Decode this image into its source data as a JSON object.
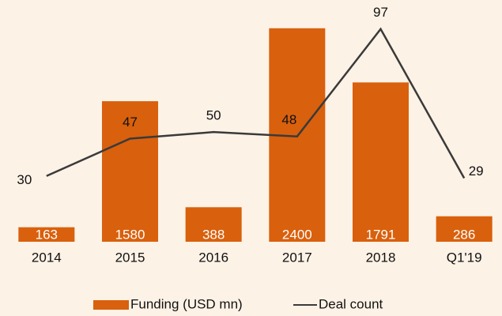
{
  "chart_data": {
    "type": "bar_line",
    "categories": [
      "2014",
      "2015",
      "2016",
      "2017",
      "2018",
      "Q1'19"
    ],
    "series": [
      {
        "name": "Funding (USD mn)",
        "type": "bar",
        "color": "#d9600d",
        "values": [
          163,
          1580,
          388,
          2400,
          1791,
          286
        ]
      },
      {
        "name": "Deal count",
        "type": "line",
        "axis": "y2",
        "color": "#3a3a3a",
        "values": [
          30,
          47,
          50,
          48,
          97,
          29
        ]
      }
    ],
    "ylim": [
      0,
      2700
    ],
    "y2lim": [
      0,
      109.5
    ],
    "grid": false
  }
}
